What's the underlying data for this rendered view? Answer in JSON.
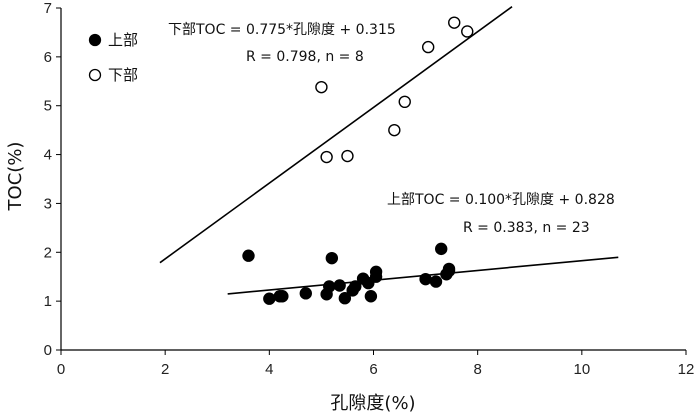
{
  "chart_data": {
    "type": "scatter",
    "title": "",
    "xlabel": "孔隙度(%)",
    "ylabel": "TOC(%)",
    "xlim": [
      0,
      12
    ],
    "ylim": [
      0,
      7
    ],
    "x_ticks": [
      "0",
      "2",
      "4",
      "6",
      "8",
      "10",
      "12"
    ],
    "y_ticks": [
      "0",
      "1",
      "2",
      "3",
      "4",
      "5",
      "6",
      "7"
    ],
    "grid": false,
    "legend_position": "top-left",
    "series": [
      {
        "name": "上部",
        "marker": "filled-circle",
        "color": "#000000",
        "points": [
          {
            "x": 3.6,
            "y": 1.93
          },
          {
            "x": 4.0,
            "y": 1.05
          },
          {
            "x": 4.2,
            "y": 1.1
          },
          {
            "x": 4.25,
            "y": 1.1
          },
          {
            "x": 4.7,
            "y": 1.16
          },
          {
            "x": 5.1,
            "y": 1.14
          },
          {
            "x": 5.15,
            "y": 1.3
          },
          {
            "x": 5.2,
            "y": 1.88
          },
          {
            "x": 5.35,
            "y": 1.32
          },
          {
            "x": 5.45,
            "y": 1.06
          },
          {
            "x": 5.6,
            "y": 1.22
          },
          {
            "x": 5.65,
            "y": 1.3
          },
          {
            "x": 5.8,
            "y": 1.46
          },
          {
            "x": 5.9,
            "y": 1.37
          },
          {
            "x": 5.95,
            "y": 1.1
          },
          {
            "x": 6.05,
            "y": 1.6
          },
          {
            "x": 6.05,
            "y": 1.5
          },
          {
            "x": 7.0,
            "y": 1.45
          },
          {
            "x": 7.2,
            "y": 1.4
          },
          {
            "x": 7.3,
            "y": 2.07
          },
          {
            "x": 7.4,
            "y": 1.55
          },
          {
            "x": 7.45,
            "y": 1.66
          },
          {
            "x": 7.45,
            "y": 1.62
          }
        ],
        "fit": {
          "x_start": 3.2,
          "x_end": 10.7
        },
        "equation": "上部TOC = 0.100*孔隙度 + 0.828",
        "stats": "R = 0.383, n = 23"
      },
      {
        "name": "下部",
        "marker": "open-circle",
        "color": "#000000",
        "points": [
          {
            "x": 5.0,
            "y": 5.38
          },
          {
            "x": 5.1,
            "y": 3.95
          },
          {
            "x": 5.5,
            "y": 3.97
          },
          {
            "x": 6.4,
            "y": 4.5
          },
          {
            "x": 6.6,
            "y": 5.08
          },
          {
            "x": 7.05,
            "y": 6.2
          },
          {
            "x": 7.55,
            "y": 6.7
          },
          {
            "x": 7.8,
            "y": 6.52
          }
        ],
        "fit": {
          "x_start": 1.9,
          "x_end": 8.66
        },
        "equation": "下部TOC = 0.775*孔隙度 + 0.315",
        "stats": "R = 0.798, n = 8"
      }
    ]
  }
}
